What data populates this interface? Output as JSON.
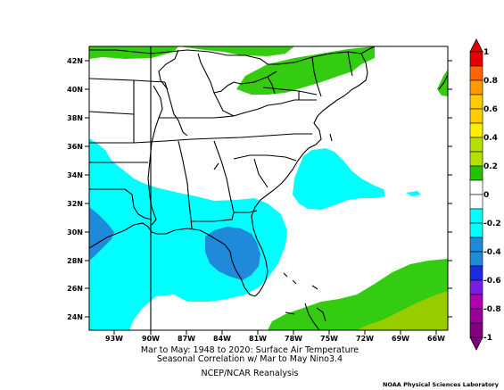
{
  "map": {
    "title_line1": "Mar to May: 1948 to 2020: Surface Air Temperature",
    "title_line2": "Seasonal Correlation w/ Mar to May Nino3.4",
    "dataset": "NCEP/NCAR Reanalysis",
    "credit": "NOAA Physical Sciences Laboratory",
    "lat_ticks": [
      "42N",
      "40N",
      "38N",
      "36N",
      "34N",
      "32N",
      "30N",
      "28N",
      "26N",
      "24N"
    ],
    "lon_ticks": [
      "93W",
      "90W",
      "87W",
      "84W",
      "81W",
      "78W",
      "75W",
      "72W",
      "69W",
      "66W"
    ],
    "colors": {
      "ocean_land_default": "#ffffff",
      "light_green": "#33cc11",
      "yellow_green": "#99cc00",
      "cyan": "#00ffff",
      "blue": "#1f8ad9"
    }
  },
  "colorbar": {
    "labels": [
      "1",
      "0.8",
      "0.6",
      "0.4",
      "0.2",
      "0",
      "-0.2",
      "-0.4",
      "-0.6",
      "-0.8",
      "-1"
    ],
    "colors": [
      "#e20000",
      "#ff6600",
      "#ff9900",
      "#ffcc00",
      "#b6e000",
      "#22c400",
      "#ffffff",
      "#00ffff",
      "#1f8ad9",
      "#1a2be0",
      "#7a1fe0",
      "#b000b0",
      "#800080"
    ]
  }
}
